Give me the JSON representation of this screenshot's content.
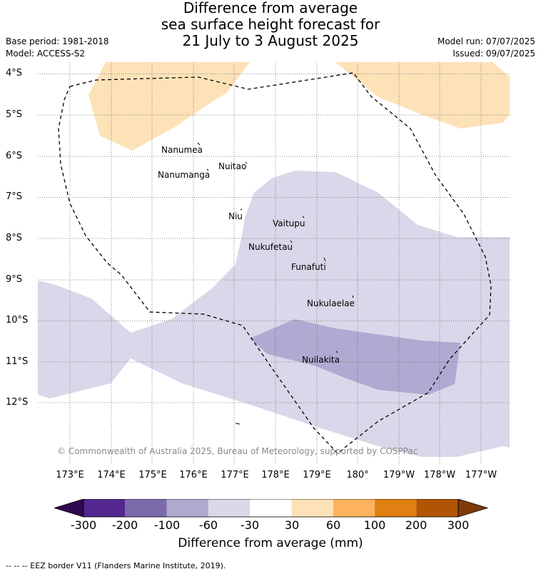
{
  "title": {
    "line1": "Difference from average",
    "line2": "sea surface height forecast for",
    "line3": "21 July to 3 August 2025"
  },
  "meta_left": {
    "base_period": "Base period: 1981-2018",
    "model": "Model: ACCESS-S2"
  },
  "meta_right": {
    "model_run": "Model run: 07/07/2025",
    "issued": "Issued: 09/07/2025"
  },
  "lat_labels": [
    "4°S",
    "5°S",
    "6°S",
    "7°S",
    "8°S",
    "9°S",
    "10°S",
    "11°S",
    "12°S"
  ],
  "lon_labels": [
    "173°E",
    "174°E",
    "175°E",
    "176°E",
    "177°E",
    "178°E",
    "179°E",
    "180°",
    "179°W",
    "178°W",
    "177°W"
  ],
  "islands": [
    {
      "name": "Nanumea"
    },
    {
      "name": "Nuitao"
    },
    {
      "name": "Nanumanga"
    },
    {
      "name": "Niu"
    },
    {
      "name": "Vaitupu"
    },
    {
      "name": "Nukufetau"
    },
    {
      "name": "Funafuti"
    },
    {
      "name": "Nukulaelae"
    },
    {
      "name": "Nuilakita"
    }
  ],
  "copyright": "© Commonwealth of Australia 2025, Bureau of Meteorology, supported by COSPPac",
  "colorbar": {
    "ticks": [
      "-300",
      "-200",
      "-100",
      "-60",
      "-30",
      "30",
      "60",
      "100",
      "200",
      "300"
    ],
    "colors": {
      "below_min": "#2d0a4e",
      "n300_n200": "#54278f",
      "n200_n100": "#7b6ba9",
      "n100_n60": "#b0a9d0",
      "n60_n30": "#d9d9ea",
      "n30_30": "#ffffff",
      "p30_p60": "#fde2b8",
      "p60_p100": "#fdb35d",
      "p100_p200": "#e07f12",
      "p200_p300": "#b15505",
      "above_max": "#7f3b08"
    },
    "title": "Difference from average (mm)"
  },
  "footer_legend": "--  --  -- EEZ border V11 (Flanders Marine Institute, 2019)."
}
